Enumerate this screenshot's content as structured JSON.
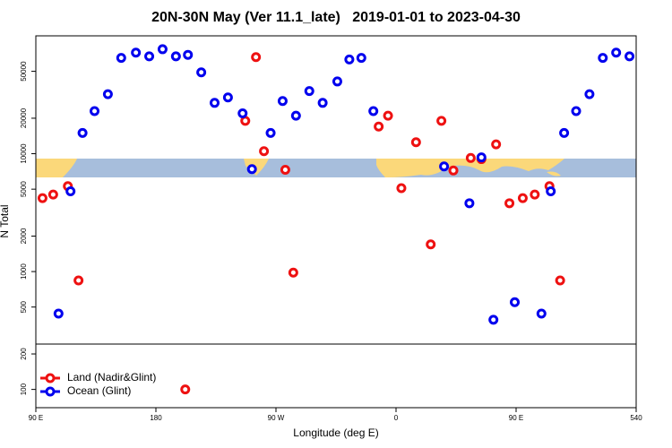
{
  "chart_data": {
    "type": "scatter",
    "title": "20N-30N May (Ver 11.1_late)   2019-01-01 to 2023-04-30",
    "x_label": "Longitude (deg E)",
    "y_label": "N Total",
    "log_y": true,
    "legend_position": "bottom-left",
    "xlim": [
      90,
      540
    ],
    "xticks": [
      {
        "value": 90,
        "label": "90 E"
      },
      180,
      {
        "value": 270,
        "label": "90 W"
      },
      {
        "value": 360,
        "label": "0"
      },
      {
        "value": 450,
        "label": "90 E"
      },
      540
    ],
    "ylim": [
      70,
      100000
    ],
    "yticks": [
      100,
      200,
      500,
      1000,
      2000,
      5000,
      10000,
      20000,
      50000
    ],
    "series": [
      {
        "name": "Land (Nadir&Glint)",
        "color": "#ee1111",
        "x": [
          95,
          103,
          114,
          122,
          202,
          247,
          255,
          261,
          277,
          283,
          347,
          354,
          364,
          375,
          386,
          394,
          403,
          416,
          424,
          435,
          445,
          455,
          464,
          475,
          483
        ],
        "values": [
          4200,
          4500,
          5300,
          840,
          100,
          19000,
          66000,
          10500,
          7300,
          980,
          17000,
          21000,
          5100,
          12500,
          1700,
          19000,
          7200,
          9200,
          9000,
          12000,
          3800,
          4200,
          4500,
          5300,
          840
        ]
      },
      {
        "name": "Ocean (Glint)",
        "color": "#0000ee",
        "x": [
          107,
          116,
          125,
          134,
          144,
          154,
          165,
          175,
          185,
          195,
          204,
          214,
          224,
          234,
          245,
          252,
          266,
          275,
          285,
          295,
          305,
          316,
          325,
          334,
          343,
          396,
          415,
          424,
          433,
          449,
          469,
          476,
          486,
          495,
          505,
          515,
          525,
          535
        ],
        "values": [
          440,
          4800,
          15000,
          23000,
          32000,
          65000,
          72000,
          67000,
          77000,
          67000,
          69000,
          49000,
          27000,
          30000,
          22000,
          7400,
          15000,
          28000,
          21000,
          34000,
          27000,
          41000,
          63000,
          65000,
          23000,
          7800,
          3800,
          9300,
          390,
          550,
          440,
          4800,
          15000,
          23000,
          32000,
          65000,
          72000,
          67000
        ]
      }
    ]
  }
}
